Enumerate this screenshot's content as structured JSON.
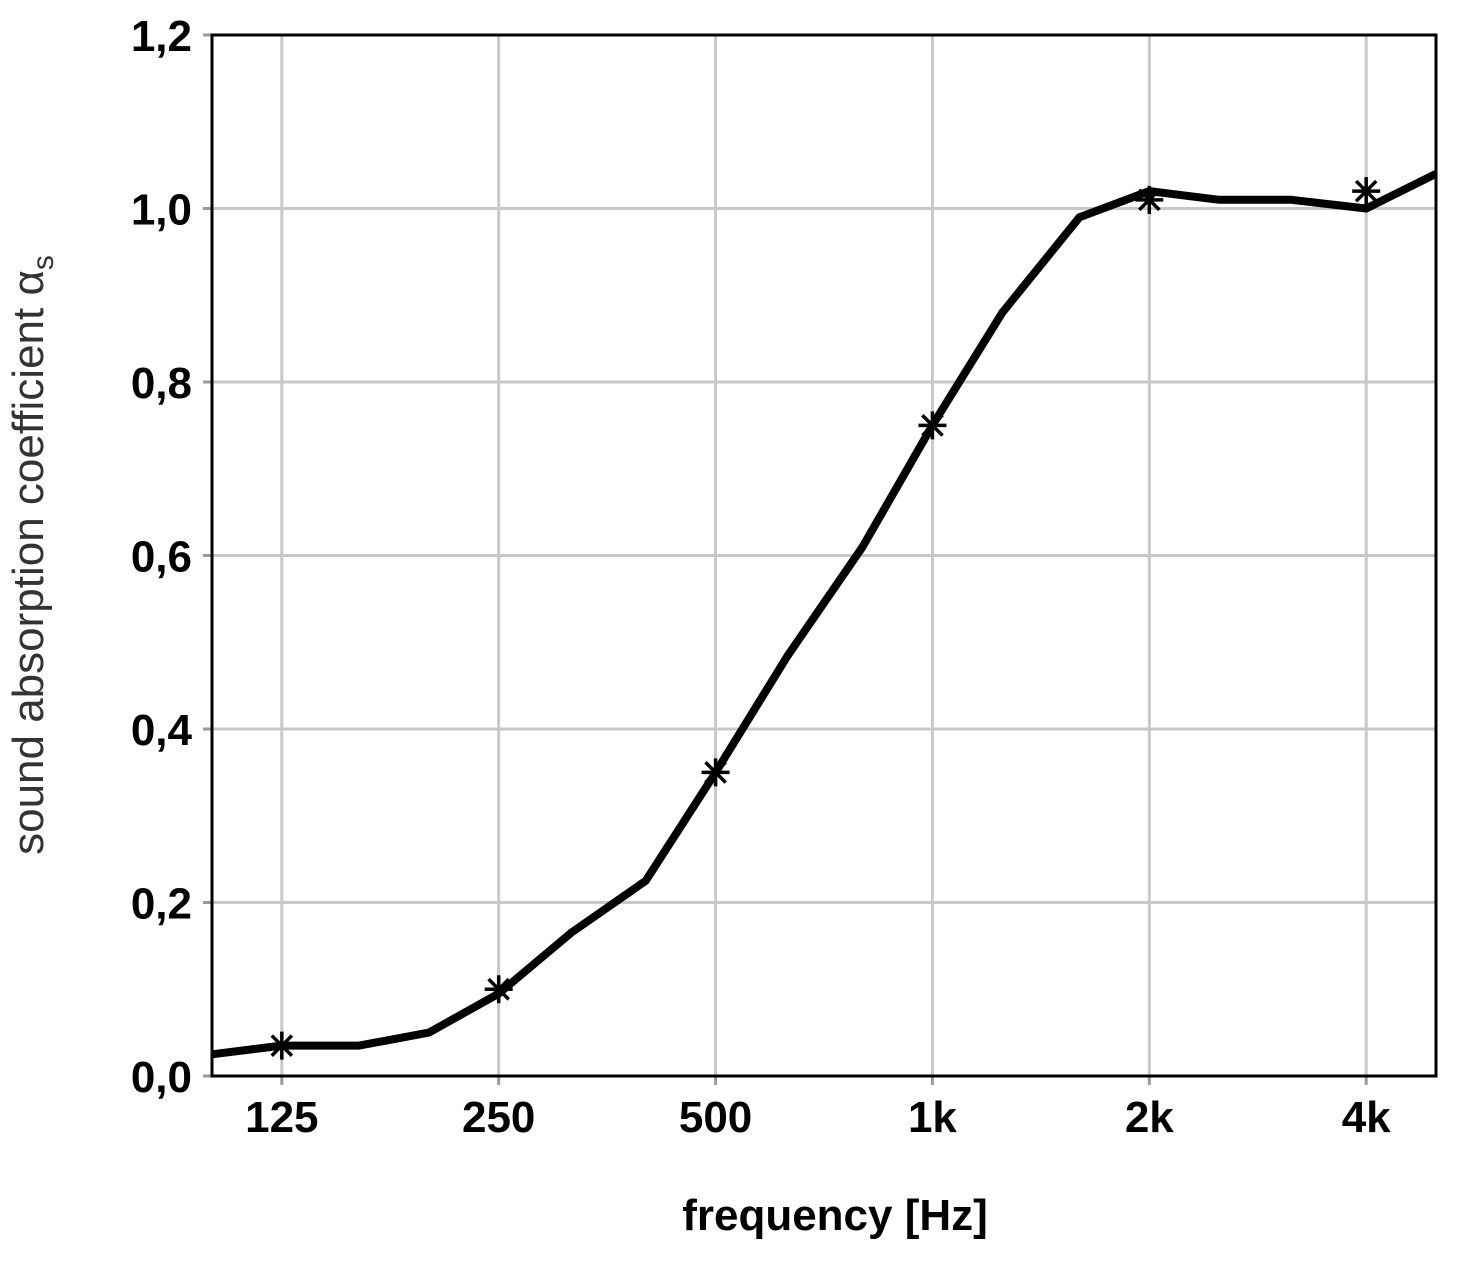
{
  "chart_data": {
    "type": "line",
    "title": "",
    "xlabel": "frequency [Hz]",
    "ylabel": "sound absorption coefficient α",
    "ylabel_subscript": "s",
    "x_scale": "log",
    "x_unit": "Hz",
    "xlim": [
      100,
      5000
    ],
    "ylim": [
      0,
      1.2
    ],
    "x_ticks": [
      {
        "value": 125,
        "label": "125"
      },
      {
        "value": 250,
        "label": "250"
      },
      {
        "value": 500,
        "label": "500"
      },
      {
        "value": 1000,
        "label": "1k"
      },
      {
        "value": 2000,
        "label": "2k"
      },
      {
        "value": 4000,
        "label": "4k"
      }
    ],
    "y_ticks": [
      {
        "value": 0,
        "label": "0,0"
      },
      {
        "value": 0.2,
        "label": "0,2"
      },
      {
        "value": 0.4,
        "label": "0,4"
      },
      {
        "value": 0.6,
        "label": "0,6"
      },
      {
        "value": 0.8,
        "label": "0,8"
      },
      {
        "value": 1.0,
        "label": "1,0"
      },
      {
        "value": 1.2,
        "label": "1,2"
      }
    ],
    "grid": true,
    "legend": "none",
    "series": [
      {
        "kind": "line",
        "color": "#000000",
        "x": [
          100,
          125,
          160,
          200,
          250,
          315,
          400,
          500,
          630,
          800,
          1000,
          1250,
          1600,
          2000,
          2500,
          3150,
          4000,
          5000
        ],
        "y": [
          0.025,
          0.035,
          0.035,
          0.05,
          0.095,
          0.165,
          0.225,
          0.35,
          0.485,
          0.61,
          0.75,
          0.88,
          0.99,
          1.02,
          1.01,
          1.01,
          1.0,
          1.04
        ]
      },
      {
        "kind": "markers",
        "marker": "asterisk",
        "color": "#000000",
        "x": [
          125,
          250,
          500,
          1000,
          2000,
          4000
        ],
        "y": [
          0.035,
          0.1,
          0.35,
          0.75,
          1.01,
          1.02
        ]
      }
    ]
  }
}
